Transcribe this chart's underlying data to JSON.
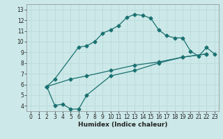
{
  "title": "",
  "xlabel": "Humidex (Indice chaleur)",
  "bg_color": "#cce8e8",
  "line_color": "#1a7070",
  "grid_color": "#b8d8d8",
  "xlim": [
    -0.5,
    23.5
  ],
  "ylim": [
    3.5,
    13.5
  ],
  "xticks": [
    0,
    1,
    2,
    3,
    4,
    5,
    6,
    7,
    8,
    9,
    10,
    11,
    12,
    13,
    14,
    15,
    16,
    17,
    18,
    19,
    20,
    21,
    22,
    23
  ],
  "yticks": [
    4,
    5,
    6,
    7,
    8,
    9,
    10,
    11,
    12,
    13
  ],
  "curve1_x": [
    2,
    3,
    6,
    7,
    8,
    9,
    10,
    11,
    12,
    13,
    14,
    15,
    16,
    17,
    18,
    19,
    20,
    21,
    22,
    23
  ],
  "curve1_y": [
    5.8,
    6.5,
    9.5,
    9.6,
    10.0,
    10.8,
    11.1,
    11.5,
    12.25,
    12.55,
    12.45,
    12.2,
    11.1,
    10.55,
    10.35,
    10.35,
    9.1,
    8.65,
    9.45,
    8.85
  ],
  "curve2_x": [
    2,
    3,
    4,
    5,
    6,
    7,
    10,
    13,
    16,
    19,
    22
  ],
  "curve2_y": [
    5.8,
    4.05,
    4.15,
    3.7,
    3.7,
    5.0,
    6.8,
    7.3,
    8.0,
    8.55,
    8.85
  ],
  "curve3_x": [
    2,
    5,
    7,
    10,
    13,
    16,
    19,
    22
  ],
  "curve3_y": [
    5.8,
    6.5,
    6.8,
    7.3,
    7.8,
    8.1,
    8.55,
    8.85
  ],
  "marker_size": 2.5,
  "linewidth": 0.9,
  "tick_fontsize": 5.5,
  "xlabel_fontsize": 6.5
}
